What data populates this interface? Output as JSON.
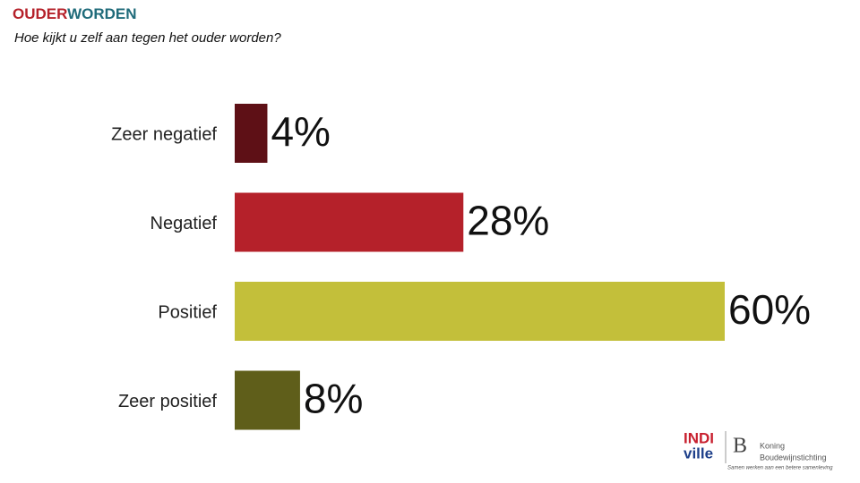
{
  "chart_data": {
    "type": "bar",
    "orientation": "horizontal",
    "title_parts": [
      {
        "text": "OUDER",
        "color": "#b5212a"
      },
      {
        "text": "WORDEN",
        "color": "#1f6b7a"
      }
    ],
    "subtitle": "Hoe kijkt u zelf aan tegen het ouder worden?",
    "categories": [
      "Zeer negatief",
      "Negatief",
      "Positief",
      "Zeer positief"
    ],
    "values": [
      4,
      28,
      60,
      8
    ],
    "value_labels": [
      "4%",
      "28%",
      "60%",
      "8%"
    ],
    "colors": [
      "#5e1016",
      "#b5212a",
      "#c3bf3a",
      "#5f5e1a"
    ]
  },
  "logos": {
    "indiville": [
      "INDI",
      "ville"
    ],
    "kbs": [
      "Koning",
      "Boudewijnstichting",
      "Samen werken aan een betere samenleving"
    ]
  }
}
